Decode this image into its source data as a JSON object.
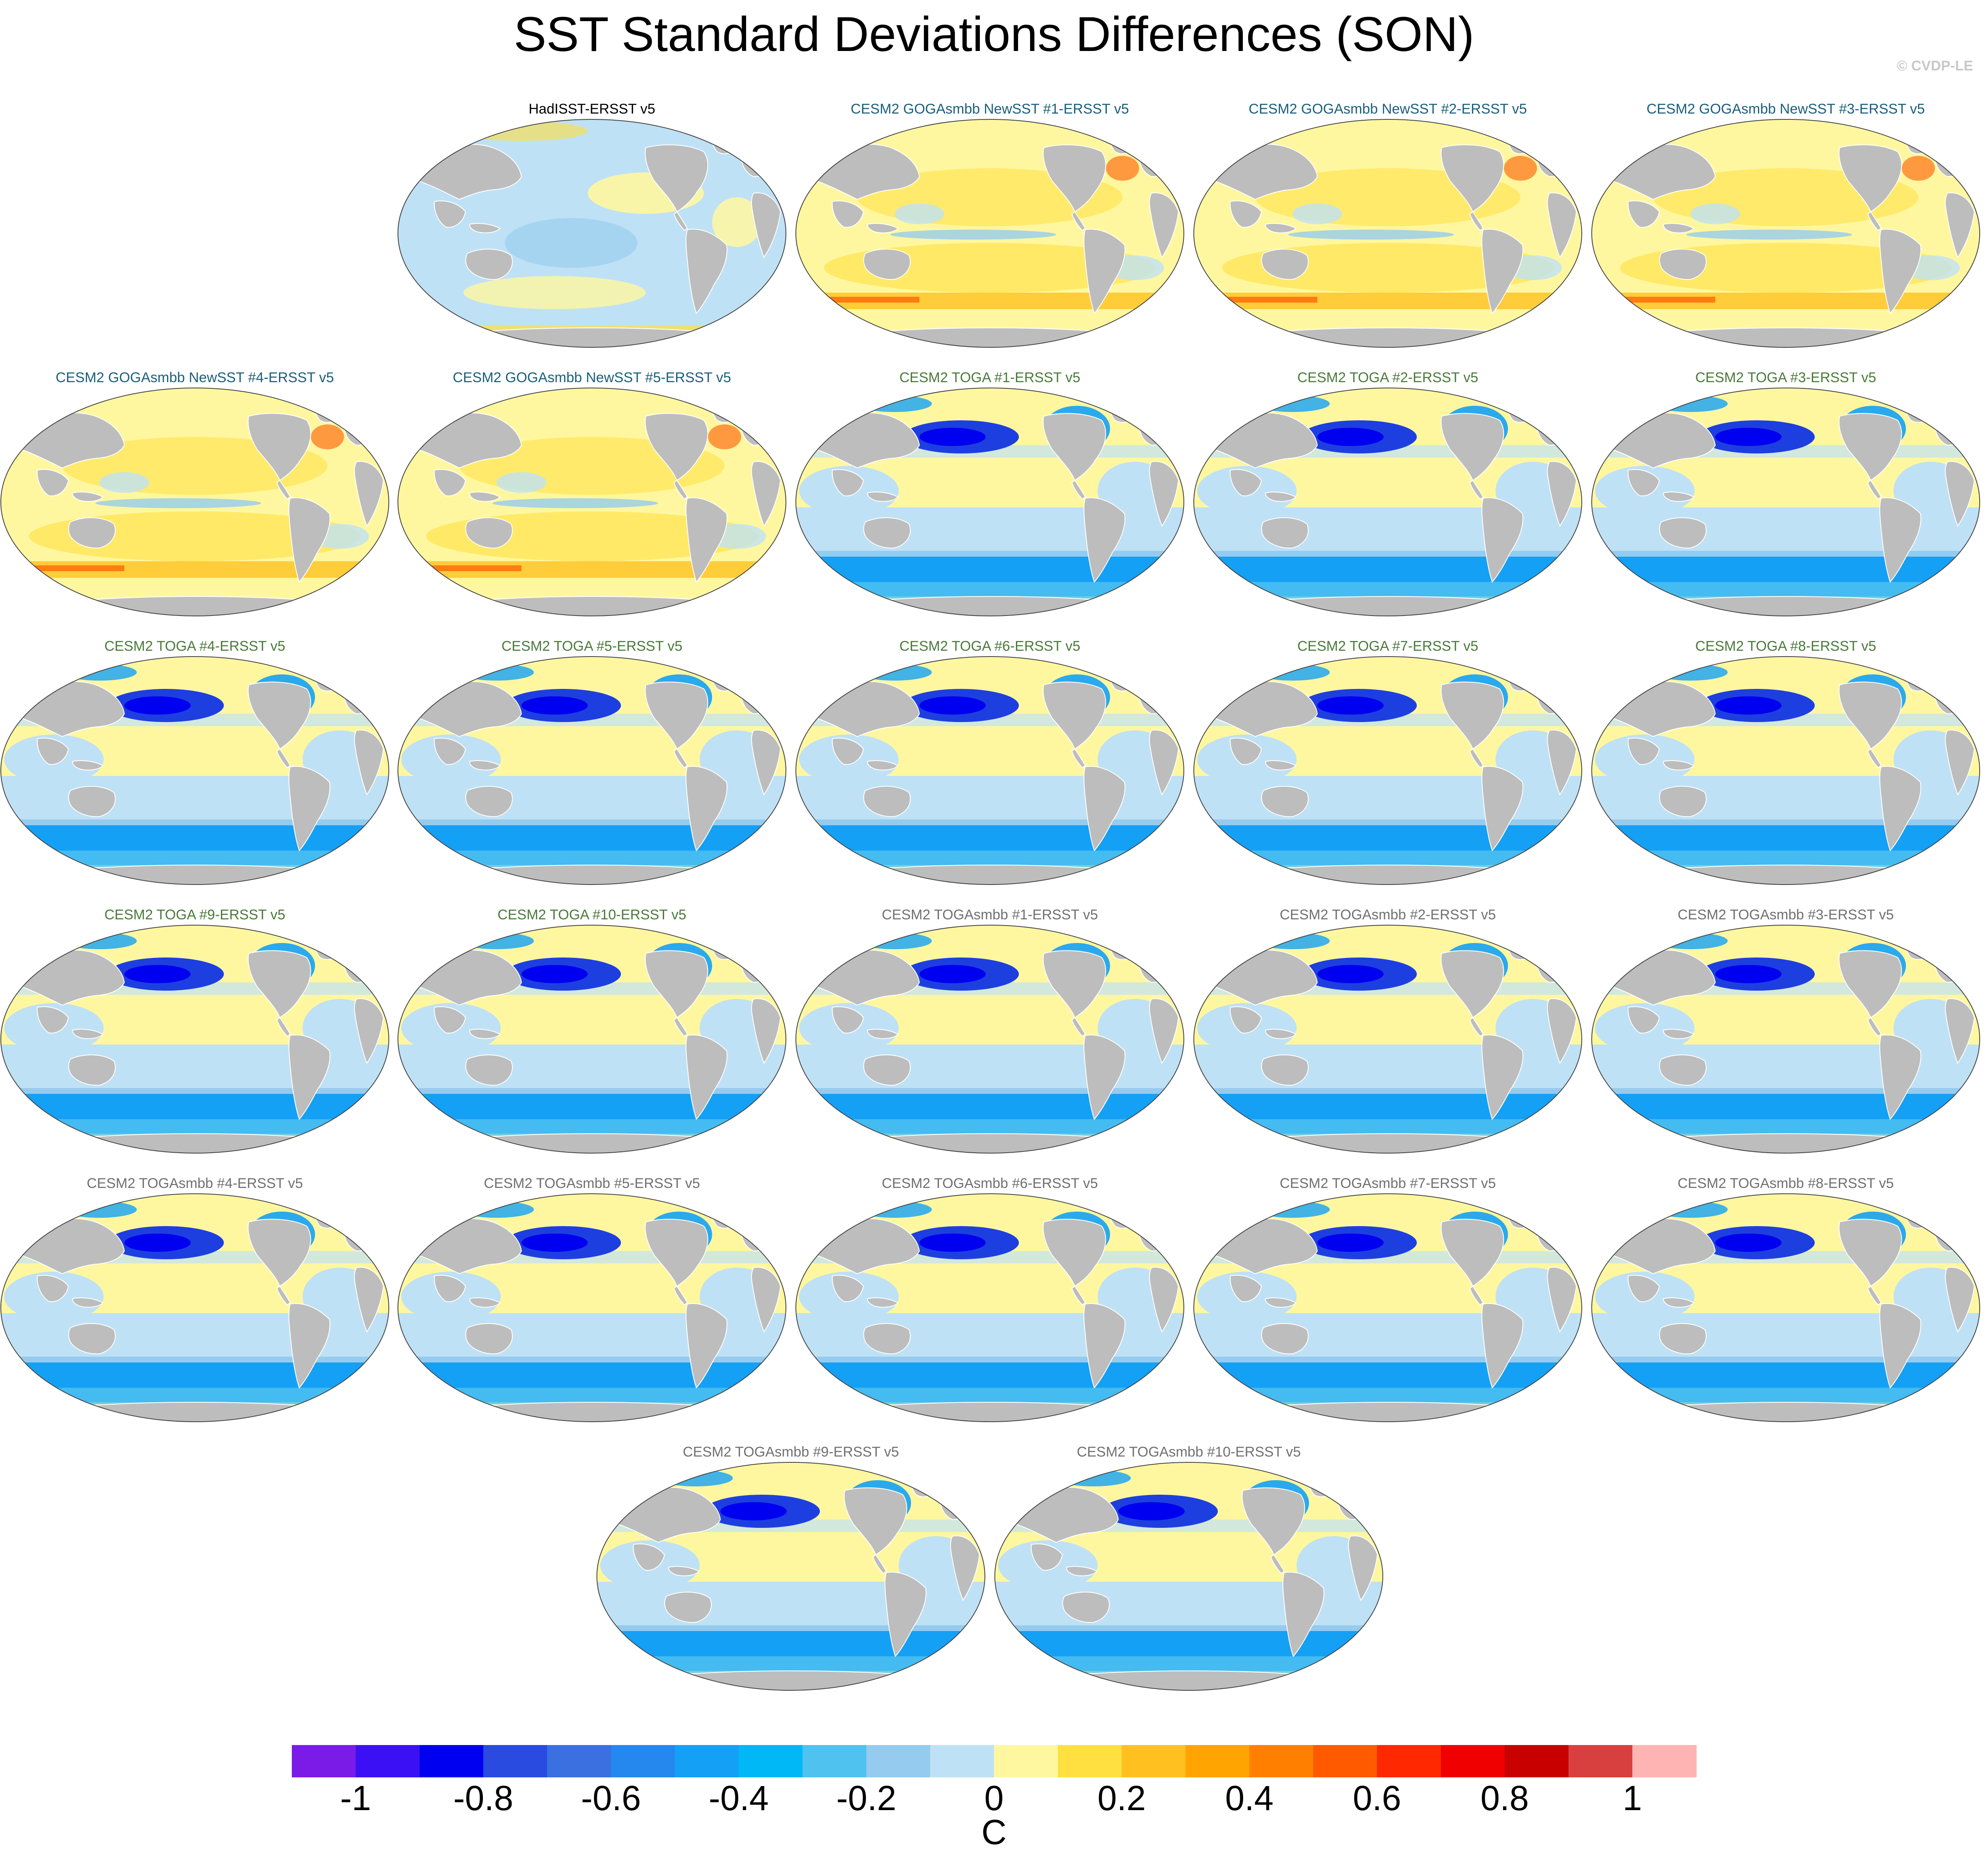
{
  "title": "SST Standard Deviations Differences (SON)",
  "credit": "© CVDP-LE",
  "panels": [
    {
      "label": "HadISST-ERSST v5",
      "label_color": "#000000",
      "pattern": "hadisst"
    },
    {
      "label": "CESM2 GOGAsmbb NewSST #1-ERSST v5",
      "label_color": "#1a5f7a",
      "pattern": "goga"
    },
    {
      "label": "CESM2 GOGAsmbb NewSST #2-ERSST v5",
      "label_color": "#1a5f7a",
      "pattern": "goga"
    },
    {
      "label": "CESM2 GOGAsmbb NewSST #3-ERSST v5",
      "label_color": "#1a5f7a",
      "pattern": "goga"
    },
    {
      "label": "CESM2 GOGAsmbb NewSST #4-ERSST v5",
      "label_color": "#1a5f7a",
      "pattern": "goga"
    },
    {
      "label": "CESM2 GOGAsmbb NewSST #5-ERSST v5",
      "label_color": "#1a5f7a",
      "pattern": "goga"
    },
    {
      "label": "CESM2 TOGA #1-ERSST v5",
      "label_color": "#4a7a3a",
      "pattern": "toga"
    },
    {
      "label": "CESM2 TOGA #2-ERSST v5",
      "label_color": "#4a7a3a",
      "pattern": "toga"
    },
    {
      "label": "CESM2 TOGA #3-ERSST v5",
      "label_color": "#4a7a3a",
      "pattern": "toga"
    },
    {
      "label": "CESM2 TOGA #4-ERSST v5",
      "label_color": "#4a7a3a",
      "pattern": "toga"
    },
    {
      "label": "CESM2 TOGA #5-ERSST v5",
      "label_color": "#4a7a3a",
      "pattern": "toga"
    },
    {
      "label": "CESM2 TOGA #6-ERSST v5",
      "label_color": "#4a7a3a",
      "pattern": "toga"
    },
    {
      "label": "CESM2 TOGA #7-ERSST v5",
      "label_color": "#4a7a3a",
      "pattern": "toga"
    },
    {
      "label": "CESM2 TOGA #8-ERSST v5",
      "label_color": "#4a7a3a",
      "pattern": "toga"
    },
    {
      "label": "CESM2 TOGA #9-ERSST v5",
      "label_color": "#4a7a3a",
      "pattern": "toga"
    },
    {
      "label": "CESM2 TOGA #10-ERSST v5",
      "label_color": "#4a7a3a",
      "pattern": "toga"
    },
    {
      "label": "CESM2 TOGAsmbb #1-ERSST v5",
      "label_color": "#707070",
      "pattern": "toga"
    },
    {
      "label": "CESM2 TOGAsmbb #2-ERSST v5",
      "label_color": "#707070",
      "pattern": "toga"
    },
    {
      "label": "CESM2 TOGAsmbb #3-ERSST v5",
      "label_color": "#707070",
      "pattern": "toga"
    },
    {
      "label": "CESM2 TOGAsmbb #4-ERSST v5",
      "label_color": "#707070",
      "pattern": "toga"
    },
    {
      "label": "CESM2 TOGAsmbb #5-ERSST v5",
      "label_color": "#707070",
      "pattern": "toga"
    },
    {
      "label": "CESM2 TOGAsmbb #6-ERSST v5",
      "label_color": "#707070",
      "pattern": "toga"
    },
    {
      "label": "CESM2 TOGAsmbb #7-ERSST v5",
      "label_color": "#707070",
      "pattern": "toga"
    },
    {
      "label": "CESM2 TOGAsmbb #8-ERSST v5",
      "label_color": "#707070",
      "pattern": "toga"
    },
    {
      "label": "CESM2 TOGAsmbb #9-ERSST v5",
      "label_color": "#707070",
      "pattern": "toga"
    },
    {
      "label": "CESM2 TOGAsmbb #10-ERSST v5",
      "label_color": "#707070",
      "pattern": "toga"
    }
  ],
  "colorbar": {
    "colors": [
      "#7b1be8",
      "#3c10f5",
      "#0000f0",
      "#2a4be0",
      "#3a70e0",
      "#2488ee",
      "#14a0f5",
      "#00b8f5",
      "#50c2f0",
      "#95cbee",
      "#bfe1f5",
      "#fff7a0",
      "#ffe040",
      "#ffc020",
      "#ffa400",
      "#ff8000",
      "#ff5a00",
      "#ff2800",
      "#f00000",
      "#c80000",
      "#d84040",
      "#ffb4b4"
    ],
    "tick_labels": [
      "-1",
      "-0.8",
      "-0.6",
      "-0.4",
      "-0.2",
      "0",
      "0.2",
      "0.4",
      "0.6",
      "0.8",
      "1"
    ],
    "units": "C"
  },
  "map_colors": {
    "land": "#bdbdbd",
    "ocean_neutral_neg": "#bfe1f5",
    "ocean_neutral_pos": "#fff7a0",
    "strong_neg": "#1e3fe0",
    "mid_neg": "#14a0f5",
    "light_neg": "#95cbee",
    "pos_mid": "#ffe040",
    "pos_strong": "#ff5a00"
  }
}
